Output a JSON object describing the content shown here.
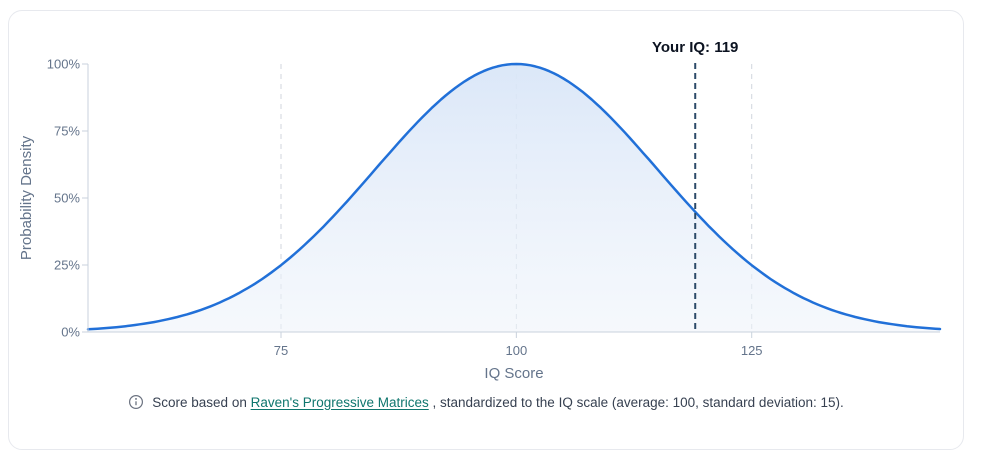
{
  "chart_data": {
    "type": "area",
    "title": "Your IQ: 119",
    "xlabel": "IQ Score",
    "ylabel": "Probability Density",
    "xlim": [
      54.5,
      145
    ],
    "ylim_percent": [
      0,
      100
    ],
    "x_ticks": [
      75,
      100,
      125
    ],
    "y_tick_labels": [
      "0%",
      "25%",
      "50%",
      "75%",
      "100%"
    ],
    "grid": "vertical-dashed-gridlines-at-x-ticks",
    "legend": "none",
    "distribution": {
      "kind": "normal-density-normalized-to-peak",
      "mean": 100,
      "sd": 15
    },
    "marker": {
      "x": 119,
      "label": "Your IQ: 119",
      "style": "dashed-vertical-line"
    },
    "points": [
      {
        "iq": 55,
        "density_pct": 1.1
      },
      {
        "iq": 60,
        "density_pct": 2.9
      },
      {
        "iq": 65,
        "density_pct": 6.6
      },
      {
        "iq": 70,
        "density_pct": 13.5
      },
      {
        "iq": 75,
        "density_pct": 24.9
      },
      {
        "iq": 80,
        "density_pct": 41.1
      },
      {
        "iq": 85,
        "density_pct": 60.7
      },
      {
        "iq": 90,
        "density_pct": 80.1
      },
      {
        "iq": 95,
        "density_pct": 94.6
      },
      {
        "iq": 100,
        "density_pct": 100.0
      },
      {
        "iq": 105,
        "density_pct": 94.6
      },
      {
        "iq": 110,
        "density_pct": 80.1
      },
      {
        "iq": 115,
        "density_pct": 60.7
      },
      {
        "iq": 119,
        "density_pct": 44.8
      },
      {
        "iq": 120,
        "density_pct": 41.1
      },
      {
        "iq": 125,
        "density_pct": 24.9
      },
      {
        "iq": 130,
        "density_pct": 13.5
      },
      {
        "iq": 135,
        "density_pct": 6.6
      },
      {
        "iq": 140,
        "density_pct": 2.9
      },
      {
        "iq": 145,
        "density_pct": 1.1
      }
    ],
    "colors": {
      "curve": "#2170d8",
      "area_top": "#d9e6f8",
      "area_bottom": "#eef3fa",
      "marker": "#2c4a68",
      "grid": "#d0d6dd",
      "axis": "#c9d2dc",
      "tick_text": "#64748b",
      "axis_title_text": "#64748b",
      "marker_text": "#0b1220",
      "link": "#0f766e",
      "card_border": "#e7e9ee"
    }
  },
  "footer": {
    "icon": "info-icon",
    "text_before_link": "Score based on ",
    "link_text": "Raven's Progressive Matrices",
    "text_after_link": " , standardized to the IQ scale (average: 100, standard deviation: 15)."
  }
}
